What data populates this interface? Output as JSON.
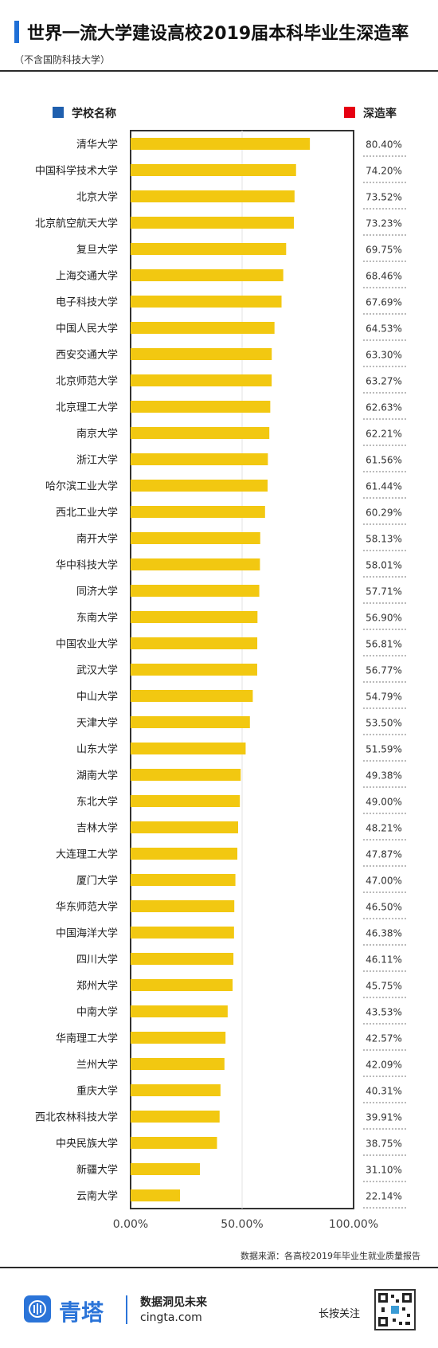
{
  "header": {
    "title": "世界一流大学建设高校2019届本科毕业生深造率",
    "subtitle": "（不含国防科技大学）"
  },
  "legend": {
    "school_label": "学校名称",
    "rate_label": "深造率",
    "school_color": "#1f5fae",
    "rate_color": "#e60012"
  },
  "footer": {
    "source": "数据来源：各高校2019年毕业生就业质量报告",
    "brand": "青塔",
    "slogan": "数据洞见未来",
    "website": "cingta.com",
    "press_follow": "长按关注",
    "logo_icon": "qingta-logo-icon",
    "qr_icon": "qr-code-icon"
  },
  "chart_data": {
    "type": "bar",
    "orientation": "horizontal",
    "bar_color": "#f2c811",
    "categories": [
      "清华大学",
      "中国科学技术大学",
      "北京大学",
      "北京航空航天大学",
      "复旦大学",
      "上海交通大学",
      "电子科技大学",
      "中国人民大学",
      "西安交通大学",
      "北京师范大学",
      "北京理工大学",
      "南京大学",
      "浙江大学",
      "哈尔滨工业大学",
      "西北工业大学",
      "南开大学",
      "华中科技大学",
      "同济大学",
      "东南大学",
      "中国农业大学",
      "武汉大学",
      "中山大学",
      "天津大学",
      "山东大学",
      "湖南大学",
      "东北大学",
      "吉林大学",
      "大连理工大学",
      "厦门大学",
      "华东师范大学",
      "中国海洋大学",
      "四川大学",
      "郑州大学",
      "中南大学",
      "华南理工大学",
      "兰州大学",
      "重庆大学",
      "西北农林科技大学",
      "中央民族大学",
      "新疆大学",
      "云南大学"
    ],
    "values": [
      80.4,
      74.2,
      73.52,
      73.23,
      69.75,
      68.46,
      67.69,
      64.53,
      63.3,
      63.27,
      62.63,
      62.21,
      61.56,
      61.44,
      60.29,
      58.13,
      58.01,
      57.71,
      56.9,
      56.81,
      56.77,
      54.79,
      53.5,
      51.59,
      49.38,
      49.0,
      48.21,
      47.87,
      47.0,
      46.5,
      46.38,
      46.11,
      45.75,
      43.53,
      42.57,
      42.09,
      40.31,
      39.91,
      38.75,
      31.1,
      22.14
    ],
    "value_labels": [
      "80.40%",
      "74.20%",
      "73.52%",
      "73.23%",
      "69.75%",
      "68.46%",
      "67.69%",
      "64.53%",
      "63.30%",
      "63.27%",
      "62.63%",
      "62.21%",
      "61.56%",
      "61.44%",
      "60.29%",
      "58.13%",
      "58.01%",
      "57.71%",
      "56.90%",
      "56.81%",
      "56.77%",
      "54.79%",
      "53.50%",
      "51.59%",
      "49.38%",
      "49.00%",
      "48.21%",
      "47.87%",
      "47.00%",
      "46.50%",
      "46.38%",
      "46.11%",
      "45.75%",
      "43.53%",
      "42.57%",
      "42.09%",
      "40.31%",
      "39.91%",
      "38.75%",
      "31.10%",
      "22.14%"
    ],
    "xlim": [
      0,
      100
    ],
    "xticks": [
      "0.00%",
      "50.00%",
      "100.00%"
    ],
    "grid": true
  }
}
